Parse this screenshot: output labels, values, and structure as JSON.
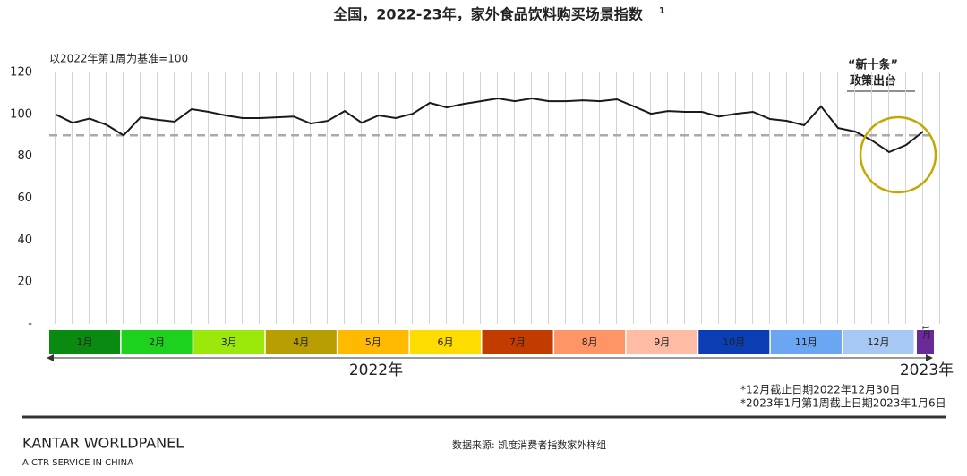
{
  "chart_data": {
    "type": "line",
    "title": "全国，2022-23年，家外食品饮料购买场景指数",
    "title_note": "1",
    "y_label": "以2022年第1周为基准=100",
    "values": [
      100,
      96,
      98,
      95,
      90,
      98.6,
      97.4,
      96.5,
      102.5,
      101.2,
      99.5,
      98.2,
      98.2,
      98.6,
      99,
      95.6,
      96.9,
      101.6,
      96,
      99.5,
      98.2,
      100.3,
      105.5,
      103.3,
      105,
      106.3,
      107.6,
      106.3,
      107.6,
      106.3,
      106.3,
      106.7,
      106.3,
      107.2,
      103.8,
      100.3,
      101.6,
      101.2,
      101.2,
      99,
      100.3,
      101.2,
      97.8,
      96.9,
      94.8,
      103.8,
      93.5,
      91.8,
      87.5,
      82,
      85.4,
      91.8
    ],
    "color": "#1a1a1a",
    "reference_line": 90,
    "reference_color": "#aaaaaa",
    "ylim": [
      0,
      120
    ],
    "yticks": [
      {
        "value": 0,
        "label": "-"
      },
      20,
      40,
      60,
      80,
      100,
      120
    ],
    "months": [
      {
        "label": "1月",
        "color": "#0b8a12"
      },
      {
        "label": "2月",
        "color": "#1fd11f"
      },
      {
        "label": "3月",
        "color": "#9be80a"
      },
      {
        "label": "4月",
        "color": "#b89e00"
      },
      {
        "label": "5月",
        "color": "#ffba00"
      },
      {
        "label": "6月",
        "color": "#ffdc00"
      },
      {
        "label": "7月",
        "color": "#c23c00"
      },
      {
        "label": "8月",
        "color": "#ff9466"
      },
      {
        "label": "9月",
        "color": "#ffbba3"
      },
      {
        "label": "10月",
        "color": "#0b3db4"
      },
      {
        "label": "11月",
        "color": "#6aa6f2"
      },
      {
        "label": "12月",
        "color": "#a8c8f4"
      },
      {
        "label": "1月",
        "color": "#6a2a9a"
      }
    ],
    "year_labels": [
      "2022年",
      "2023年"
    ],
    "annotation": [
      "“新十条”",
      "政策出台"
    ],
    "footnotes": [
      "*12月截止日期2022年12月30日",
      "*2023年1月第1周截止日期2023年1月6日"
    ],
    "brand": "KANTAR WORLDPANEL",
    "brand_sub": "A CTR SERVICE IN CHINA",
    "source": "数据来源: 凯度消费者指数家外样组"
  }
}
